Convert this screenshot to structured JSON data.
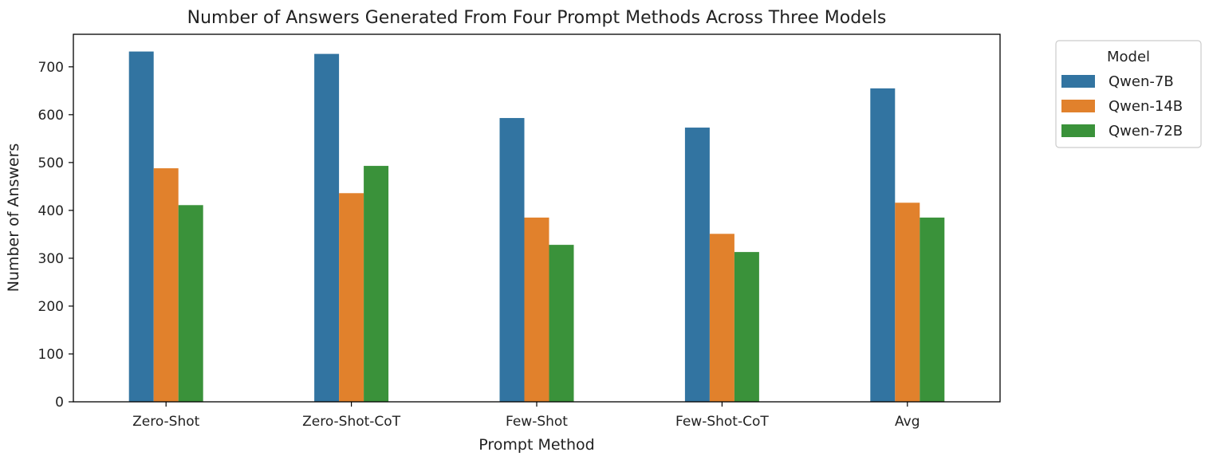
{
  "chart_data": {
    "type": "bar",
    "title": "Number of Answers Generated From Four Prompt Methods Across Three Models",
    "xlabel": "Prompt Method",
    "ylabel": "Number of Answers",
    "categories": [
      "Zero-Shot",
      "Zero-Shot-CoT",
      "Few-Shot",
      "Few-Shot-CoT",
      "Avg"
    ],
    "series": [
      {
        "name": "Qwen-7B",
        "color": "#3274a1",
        "values": [
          732,
          727,
          593,
          573,
          655
        ]
      },
      {
        "name": "Qwen-14B",
        "color": "#e1812c",
        "values": [
          488,
          436,
          385,
          351,
          416
        ]
      },
      {
        "name": "Qwen-72B",
        "color": "#3a923a",
        "values": [
          411,
          493,
          328,
          313,
          385
        ]
      }
    ],
    "ylim": [
      0,
      768
    ],
    "yticks": [
      0,
      100,
      200,
      300,
      400,
      500,
      600,
      700
    ],
    "grid": false,
    "legend": {
      "title": "Model",
      "placement": "outside-top-right"
    }
  }
}
